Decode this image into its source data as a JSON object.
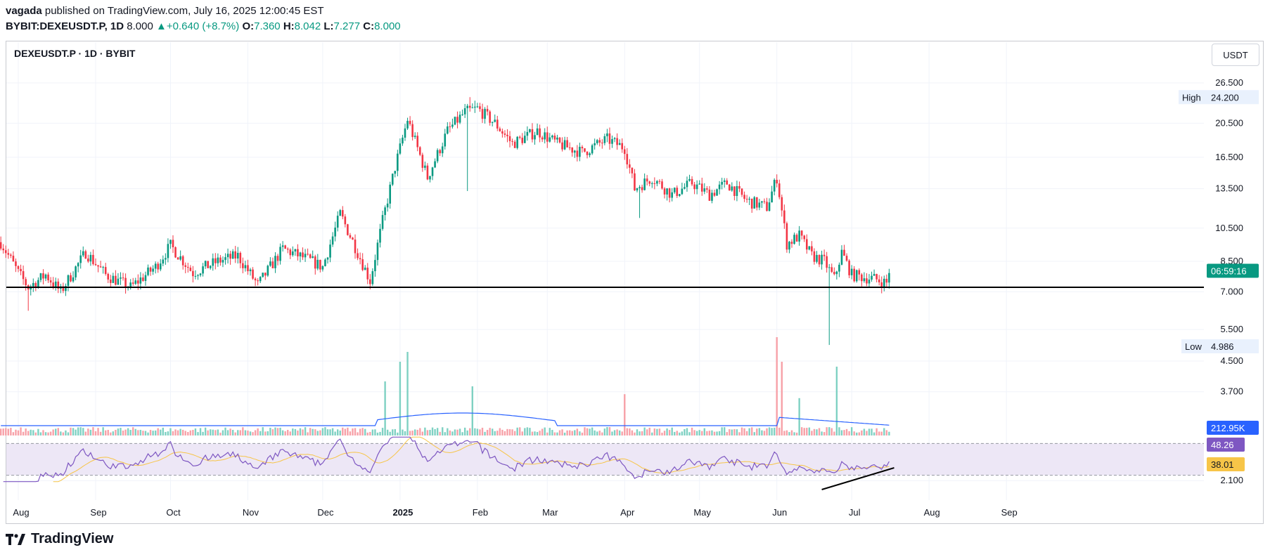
{
  "header": {
    "author": "vagada",
    "published_text": "published on TradingView.com, July 16, 2025 12:00:45 EST",
    "symbol_full": "BYBIT:DEXEUSDT.P, 1D",
    "last": "8.000",
    "change_arrow": "▲",
    "change": "+0.640 (+8.7%)",
    "o_label": "O:",
    "o_value": "7.360",
    "h_label": "H:",
    "h_value": "8.042",
    "l_label": "L:",
    "l_value": "7.277",
    "c_label": "C:",
    "c_value": "8.000"
  },
  "chart_title": "DEXEUSDT.P · 1D · BYBIT",
  "currency_button": "USDT",
  "brand": "TradingView",
  "colors": {
    "up": "#089981",
    "down": "#f23645",
    "volume_ma": "#2962ff",
    "rsi": "#7e57c2",
    "rsi_ma": "#f7c548",
    "rsi_band": "#ede7f6"
  },
  "chart_data": {
    "type": "candlestick",
    "title": "DEXEUSDT.P · 1D · BYBIT",
    "y_scale": "log",
    "y_ticks": [
      "26.500",
      "20.500",
      "16.500",
      "13.500",
      "10.500",
      "8.500",
      "7.000",
      "5.500",
      "4.500",
      "3.700",
      "2.100"
    ],
    "x_ticks": [
      "Aug",
      "Sep",
      "Oct",
      "Nov",
      "Dec",
      "2025",
      "Feb",
      "Mar",
      "Apr",
      "May",
      "Jun",
      "Jul",
      "Aug",
      "Sep"
    ],
    "support_level": 7.2,
    "high_label": "High",
    "high_value": "24.200",
    "low_label": "Low",
    "low_value": "4.986",
    "countdown": "06:59:16",
    "price_path": [
      [
        "2024-07-25",
        9.6
      ],
      [
        "2024-08-01",
        7.9
      ],
      [
        "2024-08-05",
        7.2
      ],
      [
        "2024-08-12",
        7.8
      ],
      [
        "2024-08-18",
        7.0
      ],
      [
        "2024-08-28",
        9.0
      ],
      [
        "2024-09-05",
        7.8
      ],
      [
        "2024-09-15",
        7.2
      ],
      [
        "2024-09-25",
        8.2
      ],
      [
        "2024-10-01",
        9.4
      ],
      [
        "2024-10-10",
        7.9
      ],
      [
        "2024-10-20",
        8.5
      ],
      [
        "2024-10-28",
        8.8
      ],
      [
        "2024-11-05",
        7.3
      ],
      [
        "2024-11-15",
        9.2
      ],
      [
        "2024-11-25",
        8.6
      ],
      [
        "2024-12-01",
        8.2
      ],
      [
        "2024-12-08",
        11.5
      ],
      [
        "2024-12-15",
        9.0
      ],
      [
        "2024-12-20",
        7.5
      ],
      [
        "2024-12-25",
        11.0
      ],
      [
        "2024-12-30",
        15.5
      ],
      [
        "2025-01-04",
        21.0
      ],
      [
        "2025-01-12",
        14.5
      ],
      [
        "2025-01-20",
        19.5
      ],
      [
        "2025-01-27",
        22.0
      ],
      [
        "2025-02-01",
        22.5
      ],
      [
        "2025-02-08",
        20.5
      ],
      [
        "2025-02-15",
        18.0
      ],
      [
        "2025-02-25",
        19.5
      ],
      [
        "2025-03-05",
        18.0
      ],
      [
        "2025-03-15",
        17.0
      ],
      [
        "2025-03-25",
        18.5
      ],
      [
        "2025-04-01",
        17.5
      ],
      [
        "2025-04-05",
        13.5
      ],
      [
        "2025-04-12",
        14.5
      ],
      [
        "2025-04-20",
        13.0
      ],
      [
        "2025-04-28",
        14.0
      ],
      [
        "2025-05-05",
        13.0
      ],
      [
        "2025-05-12",
        14.0
      ],
      [
        "2025-05-20",
        12.5
      ],
      [
        "2025-05-28",
        12.0
      ],
      [
        "2025-06-01",
        14.5
      ],
      [
        "2025-06-05",
        9.5
      ],
      [
        "2025-06-10",
        10.0
      ],
      [
        "2025-06-15",
        8.8
      ],
      [
        "2025-06-20",
        8.5
      ],
      [
        "2025-06-24",
        7.6
      ],
      [
        "2025-06-27",
        9.0
      ],
      [
        "2025-07-01",
        7.8
      ],
      [
        "2025-07-05",
        7.7
      ],
      [
        "2025-07-10",
        7.6
      ],
      [
        "2025-07-15",
        7.4
      ],
      [
        "2025-07-16",
        8.0
      ]
    ],
    "volume": {
      "ma_label": "212.95K",
      "spikes": [
        [
          "2024-12-26",
          0.55
        ],
        [
          "2025-01-01",
          0.75
        ],
        [
          "2025-01-04",
          0.85
        ],
        [
          "2025-01-30",
          0.5
        ],
        [
          "2025-04-01",
          0.42
        ],
        [
          "2025-06-01",
          1.0
        ],
        [
          "2025-06-03",
          0.75
        ],
        [
          "2025-06-10",
          0.38
        ],
        [
          "2025-06-25",
          0.7
        ]
      ]
    },
    "rsi": {
      "value_label": "48.26",
      "ma_label": "38.01",
      "upper_band": 70,
      "lower_band": 30,
      "bullish_divergence": true
    }
  }
}
